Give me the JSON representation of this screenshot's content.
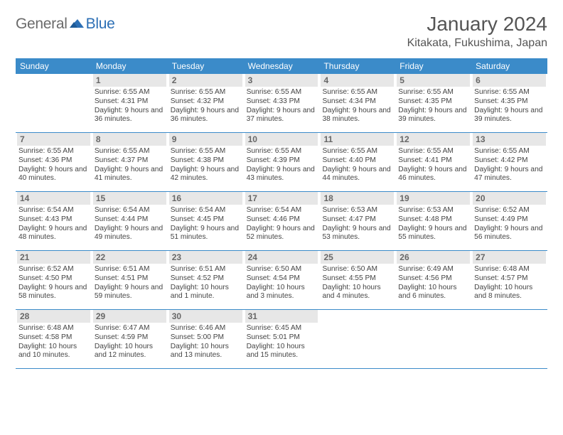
{
  "logo": {
    "general": "General",
    "blue": "Blue"
  },
  "title": "January 2024",
  "location": "Kitakata, Fukushima, Japan",
  "colors": {
    "header_bg": "#3b8bc9",
    "header_text": "#ffffff",
    "daynum_bg": "#e7e7e7",
    "daynum_text": "#676767",
    "body_text": "#444444",
    "border": "#3b8bc9",
    "logo_gray": "#6a6a6a",
    "logo_blue": "#2c6fb5"
  },
  "daysOfWeek": [
    "Sunday",
    "Monday",
    "Tuesday",
    "Wednesday",
    "Thursday",
    "Friday",
    "Saturday"
  ],
  "weeks": [
    [
      null,
      {
        "n": "1",
        "sr": "6:55 AM",
        "ss": "4:31 PM",
        "dl": "9 hours and 36 minutes."
      },
      {
        "n": "2",
        "sr": "6:55 AM",
        "ss": "4:32 PM",
        "dl": "9 hours and 36 minutes."
      },
      {
        "n": "3",
        "sr": "6:55 AM",
        "ss": "4:33 PM",
        "dl": "9 hours and 37 minutes."
      },
      {
        "n": "4",
        "sr": "6:55 AM",
        "ss": "4:34 PM",
        "dl": "9 hours and 38 minutes."
      },
      {
        "n": "5",
        "sr": "6:55 AM",
        "ss": "4:35 PM",
        "dl": "9 hours and 39 minutes."
      },
      {
        "n": "6",
        "sr": "6:55 AM",
        "ss": "4:35 PM",
        "dl": "9 hours and 39 minutes."
      }
    ],
    [
      {
        "n": "7",
        "sr": "6:55 AM",
        "ss": "4:36 PM",
        "dl": "9 hours and 40 minutes."
      },
      {
        "n": "8",
        "sr": "6:55 AM",
        "ss": "4:37 PM",
        "dl": "9 hours and 41 minutes."
      },
      {
        "n": "9",
        "sr": "6:55 AM",
        "ss": "4:38 PM",
        "dl": "9 hours and 42 minutes."
      },
      {
        "n": "10",
        "sr": "6:55 AM",
        "ss": "4:39 PM",
        "dl": "9 hours and 43 minutes."
      },
      {
        "n": "11",
        "sr": "6:55 AM",
        "ss": "4:40 PM",
        "dl": "9 hours and 44 minutes."
      },
      {
        "n": "12",
        "sr": "6:55 AM",
        "ss": "4:41 PM",
        "dl": "9 hours and 46 minutes."
      },
      {
        "n": "13",
        "sr": "6:55 AM",
        "ss": "4:42 PM",
        "dl": "9 hours and 47 minutes."
      }
    ],
    [
      {
        "n": "14",
        "sr": "6:54 AM",
        "ss": "4:43 PM",
        "dl": "9 hours and 48 minutes."
      },
      {
        "n": "15",
        "sr": "6:54 AM",
        "ss": "4:44 PM",
        "dl": "9 hours and 49 minutes."
      },
      {
        "n": "16",
        "sr": "6:54 AM",
        "ss": "4:45 PM",
        "dl": "9 hours and 51 minutes."
      },
      {
        "n": "17",
        "sr": "6:54 AM",
        "ss": "4:46 PM",
        "dl": "9 hours and 52 minutes."
      },
      {
        "n": "18",
        "sr": "6:53 AM",
        "ss": "4:47 PM",
        "dl": "9 hours and 53 minutes."
      },
      {
        "n": "19",
        "sr": "6:53 AM",
        "ss": "4:48 PM",
        "dl": "9 hours and 55 minutes."
      },
      {
        "n": "20",
        "sr": "6:52 AM",
        "ss": "4:49 PM",
        "dl": "9 hours and 56 minutes."
      }
    ],
    [
      {
        "n": "21",
        "sr": "6:52 AM",
        "ss": "4:50 PM",
        "dl": "9 hours and 58 minutes."
      },
      {
        "n": "22",
        "sr": "6:51 AM",
        "ss": "4:51 PM",
        "dl": "9 hours and 59 minutes."
      },
      {
        "n": "23",
        "sr": "6:51 AM",
        "ss": "4:52 PM",
        "dl": "10 hours and 1 minute."
      },
      {
        "n": "24",
        "sr": "6:50 AM",
        "ss": "4:54 PM",
        "dl": "10 hours and 3 minutes."
      },
      {
        "n": "25",
        "sr": "6:50 AM",
        "ss": "4:55 PM",
        "dl": "10 hours and 4 minutes."
      },
      {
        "n": "26",
        "sr": "6:49 AM",
        "ss": "4:56 PM",
        "dl": "10 hours and 6 minutes."
      },
      {
        "n": "27",
        "sr": "6:48 AM",
        "ss": "4:57 PM",
        "dl": "10 hours and 8 minutes."
      }
    ],
    [
      {
        "n": "28",
        "sr": "6:48 AM",
        "ss": "4:58 PM",
        "dl": "10 hours and 10 minutes."
      },
      {
        "n": "29",
        "sr": "6:47 AM",
        "ss": "4:59 PM",
        "dl": "10 hours and 12 minutes."
      },
      {
        "n": "30",
        "sr": "6:46 AM",
        "ss": "5:00 PM",
        "dl": "10 hours and 13 minutes."
      },
      {
        "n": "31",
        "sr": "6:45 AM",
        "ss": "5:01 PM",
        "dl": "10 hours and 15 minutes."
      },
      null,
      null,
      null
    ]
  ],
  "labels": {
    "sunrise": "Sunrise:",
    "sunset": "Sunset:",
    "daylight": "Daylight:"
  }
}
